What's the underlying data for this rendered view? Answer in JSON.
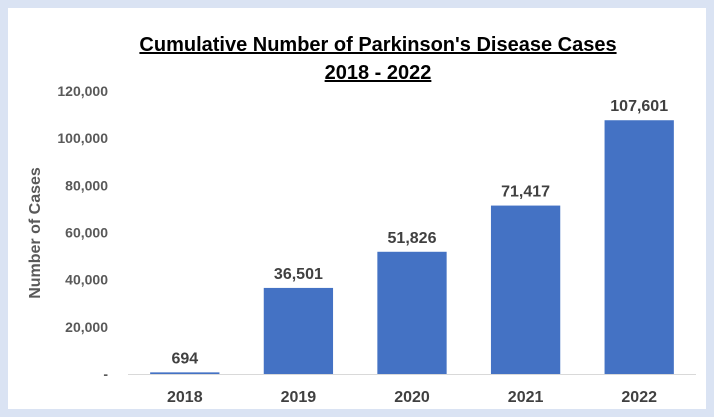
{
  "chart_data": {
    "type": "bar",
    "title_line1": "Cumulative Number of Parkinson's Disease Cases",
    "title_line2": "2018 - 2022",
    "ylabel": "Number of Cases",
    "xlabel": "",
    "categories": [
      "2018",
      "2019",
      "2020",
      "2021",
      "2022"
    ],
    "values": [
      694,
      36501,
      51826,
      71417,
      107601
    ],
    "data_labels": [
      "694",
      "36,501",
      "51,826",
      "71,417",
      "107,601"
    ],
    "yticks": [
      0,
      20000,
      40000,
      60000,
      80000,
      100000,
      120000
    ],
    "ytick_labels": [
      "-",
      "20,000",
      "40,000",
      "60,000",
      "80,000",
      "100,000",
      "120,000"
    ],
    "ylim": [
      0,
      120000
    ],
    "grid": false,
    "legend": "none",
    "bar_color": "#4472c4",
    "page_border_color": "#dae3f3"
  }
}
